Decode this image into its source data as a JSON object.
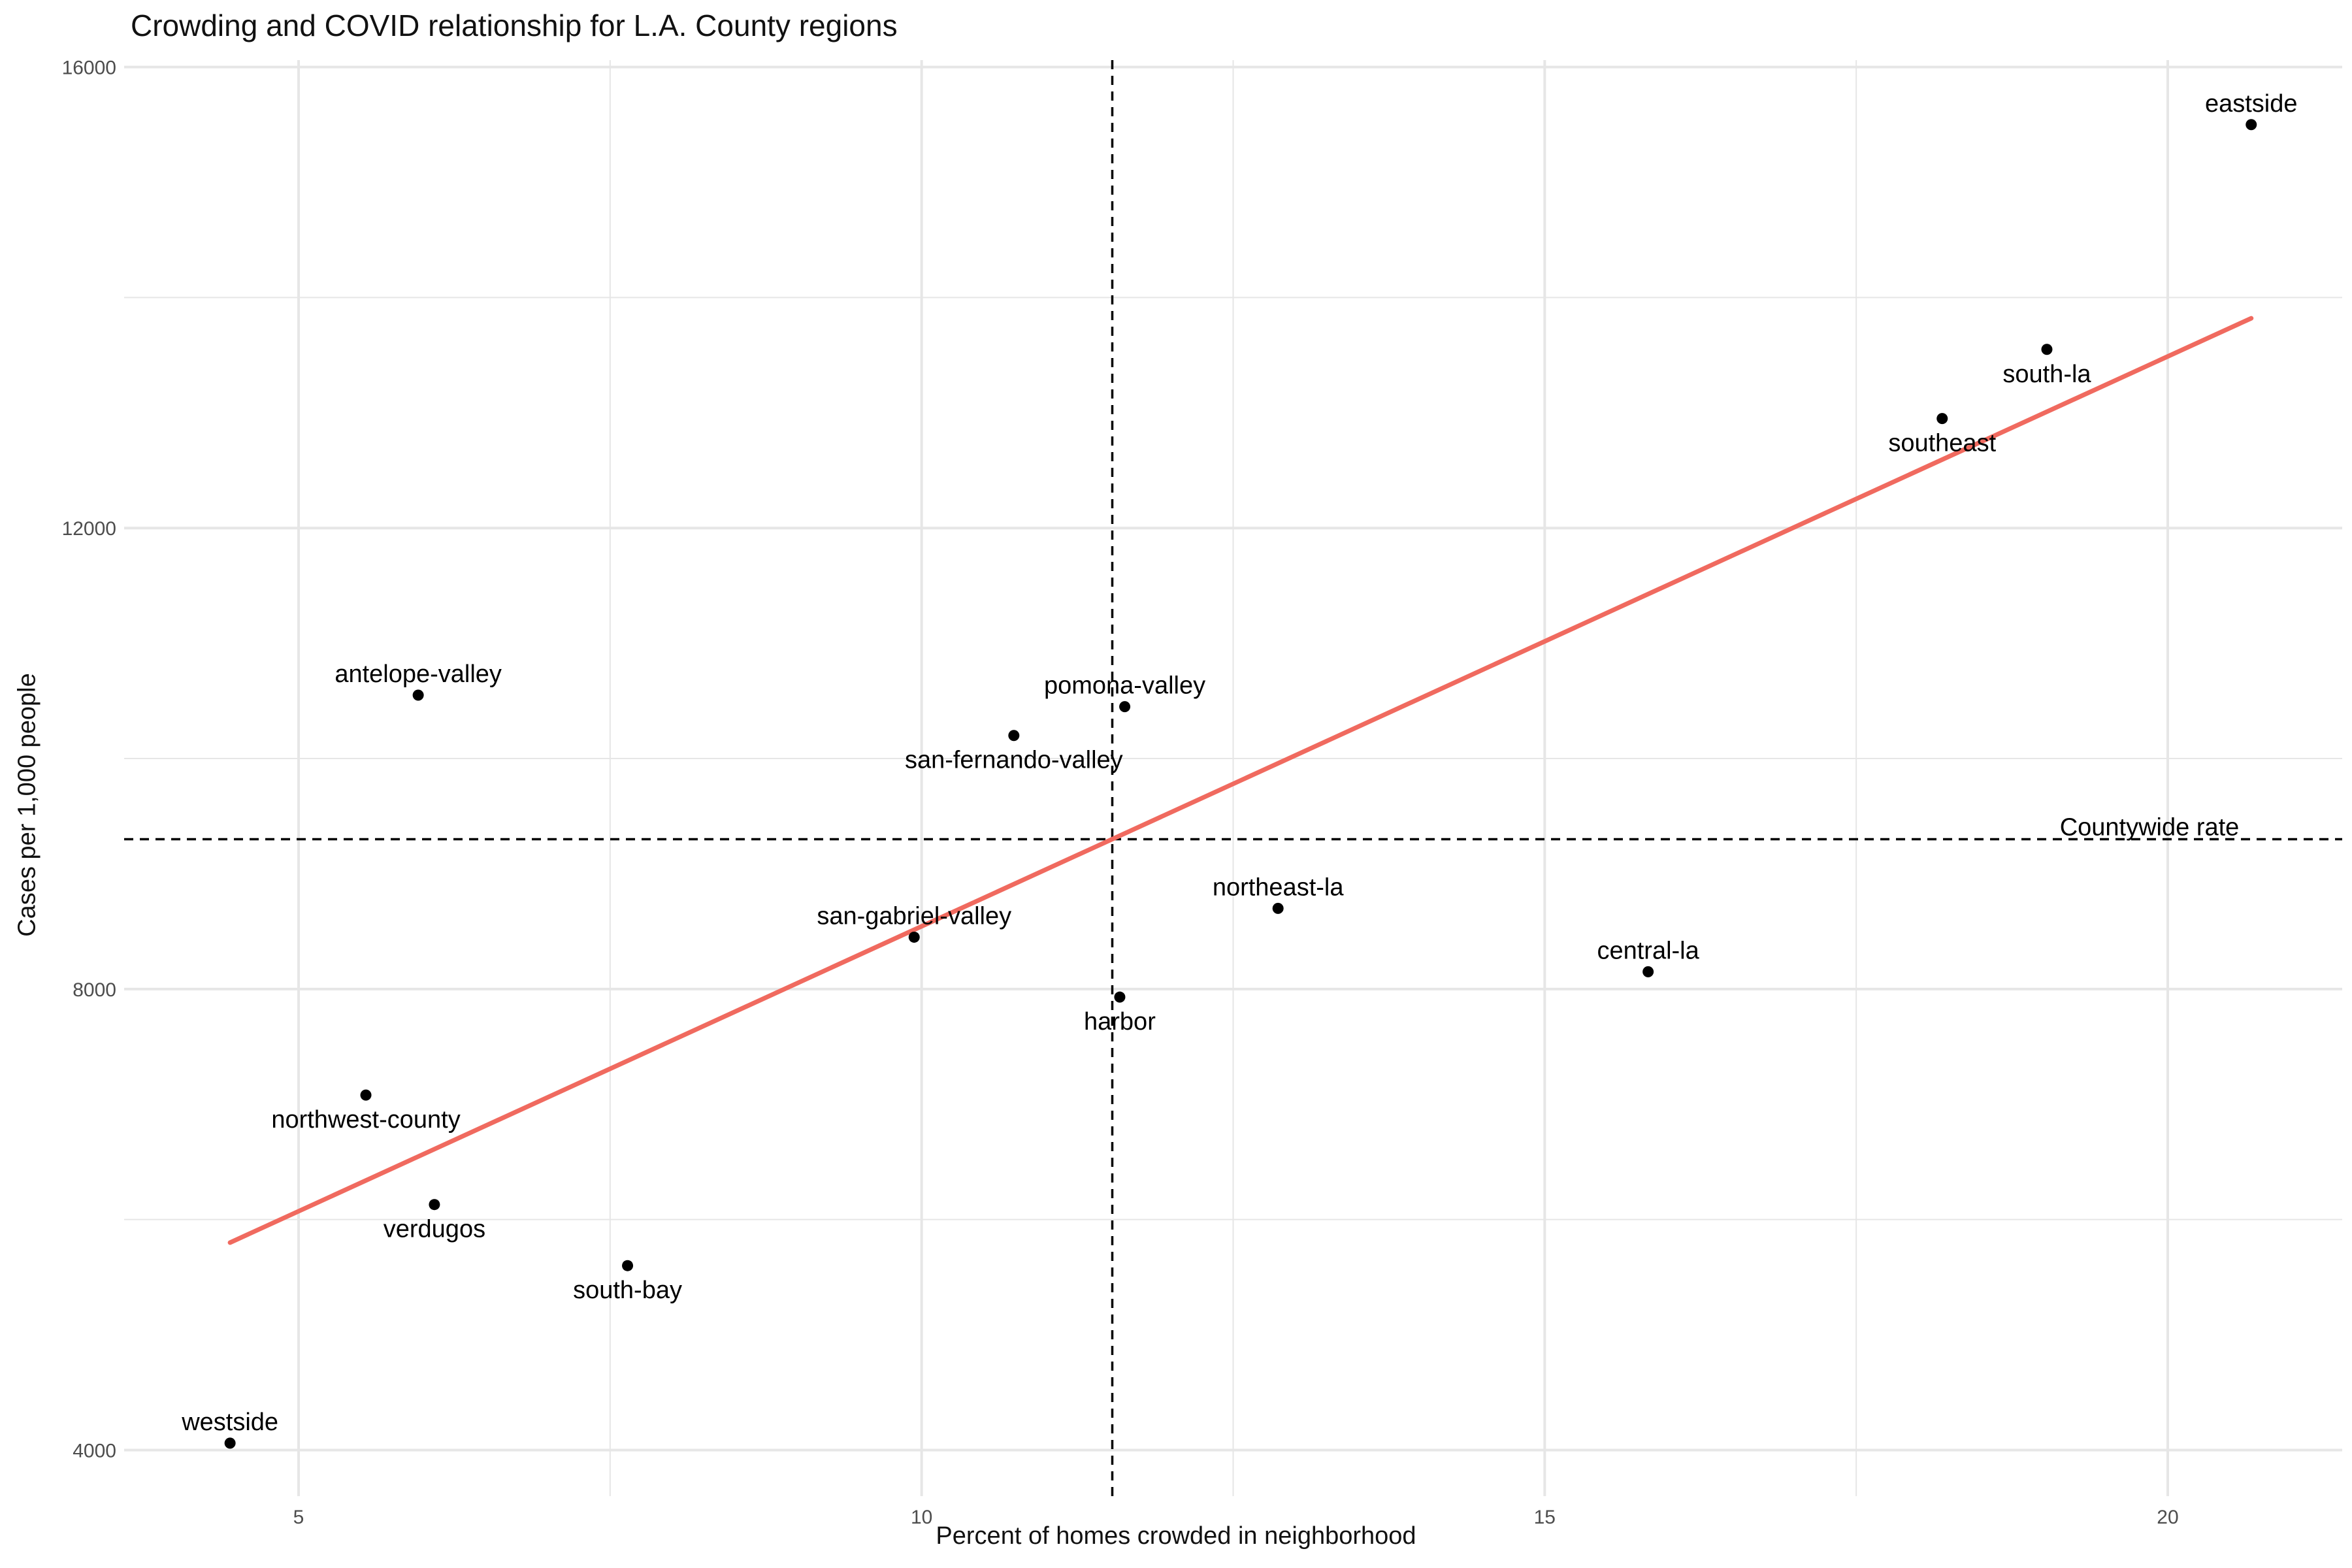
{
  "chart_data": {
    "type": "scatter",
    "title": "Crowding and COVID relationship for L.A. County regions",
    "xlabel": "Percent of homes crowded in neighborhood",
    "ylabel": "Cases per 1,000 people",
    "xlim": [
      3.6,
      21.4
    ],
    "ylim": [
      3600,
      16060
    ],
    "x_ticks": [
      5,
      10,
      15,
      20
    ],
    "y_ticks": [
      4000,
      8000,
      12000,
      16000
    ],
    "x_minor_grid": [
      7.5,
      12.5,
      17.5
    ],
    "y_minor_grid": [
      6000,
      10000,
      14000
    ],
    "grid": true,
    "points": [
      {
        "label": "eastside",
        "x": 20.67,
        "y": 15500,
        "label_pos": "above"
      },
      {
        "label": "south-la",
        "x": 19.03,
        "y": 13550,
        "label_pos": "below"
      },
      {
        "label": "southeast",
        "x": 18.19,
        "y": 12950,
        "label_pos": "below"
      },
      {
        "label": "antelope-valley",
        "x": 5.96,
        "y": 10550,
        "label_pos": "above"
      },
      {
        "label": "pomona-valley",
        "x": 11.63,
        "y": 10450,
        "label_pos": "above"
      },
      {
        "label": "san-fernando-valley",
        "x": 10.74,
        "y": 10200,
        "label_pos": "below"
      },
      {
        "label": "northeast-la",
        "x": 12.86,
        "y": 8700,
        "label_pos": "above"
      },
      {
        "label": "san-gabriel-valley",
        "x": 9.94,
        "y": 8450,
        "label_pos": "above"
      },
      {
        "label": "central-la",
        "x": 15.83,
        "y": 8150,
        "label_pos": "above"
      },
      {
        "label": "harbor",
        "x": 11.59,
        "y": 7930,
        "label_pos": "below"
      },
      {
        "label": "northwest-county",
        "x": 5.54,
        "y": 7080,
        "label_pos": "below"
      },
      {
        "label": "verdugos",
        "x": 6.09,
        "y": 6130,
        "label_pos": "below"
      },
      {
        "label": "south-bay",
        "x": 7.64,
        "y": 5600,
        "label_pos": "below"
      },
      {
        "label": "westside",
        "x": 4.45,
        "y": 4060,
        "label_pos": "above"
      }
    ],
    "fit_line": {
      "x": [
        4.45,
        20.67
      ],
      "y": [
        5800,
        13820
      ],
      "color": "#F06A5F"
    },
    "reference_lines": {
      "vertical_x": 11.53,
      "horizontal_y": 9300,
      "horizontal_label": "Countywide rate"
    },
    "colors": {
      "points": "#000000",
      "grid": "#E6E6E6",
      "fit": "#F06A5F",
      "reference": "#000000"
    }
  }
}
